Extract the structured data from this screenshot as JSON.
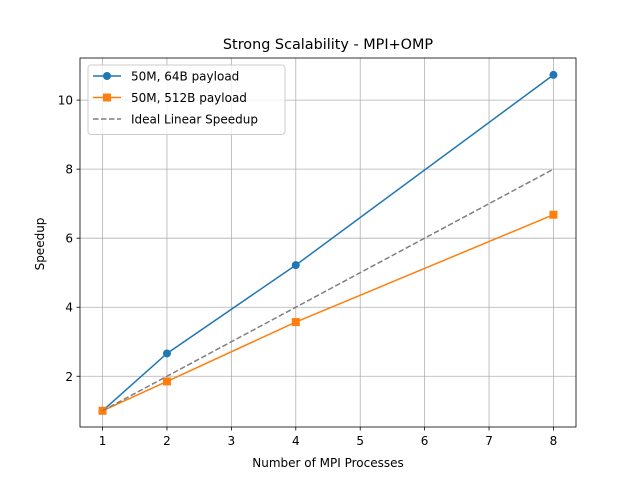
{
  "chart_data": {
    "type": "line",
    "title": "Strong Scalability - MPI+OMP",
    "xlabel": "Number of MPI Processes",
    "ylabel": "Speedup",
    "xlim": [
      0.65,
      8.35
    ],
    "ylim": [
      0.53,
      11.22
    ],
    "xticks": [
      1,
      2,
      3,
      4,
      5,
      6,
      7,
      8
    ],
    "yticks": [
      2,
      4,
      6,
      8,
      10
    ],
    "grid": true,
    "legend_position": "top-left",
    "series": [
      {
        "name": "50M, 64B payload",
        "color": "#1f77b4",
        "marker": "circle",
        "linestyle": "solid",
        "x": [
          1,
          2,
          4,
          8
        ],
        "y": [
          1.0,
          2.66,
          5.22,
          10.73
        ]
      },
      {
        "name": "50M, 512B payload",
        "color": "#ff7f0e",
        "marker": "square",
        "linestyle": "solid",
        "x": [
          1,
          2,
          4,
          8
        ],
        "y": [
          1.0,
          1.85,
          3.57,
          6.68
        ]
      },
      {
        "name": "Ideal Linear Speedup",
        "color": "#7f7f7f",
        "marker": "none",
        "linestyle": "dashed",
        "x": [
          1,
          2,
          4,
          8
        ],
        "y": [
          1,
          2,
          4,
          8
        ]
      }
    ]
  }
}
